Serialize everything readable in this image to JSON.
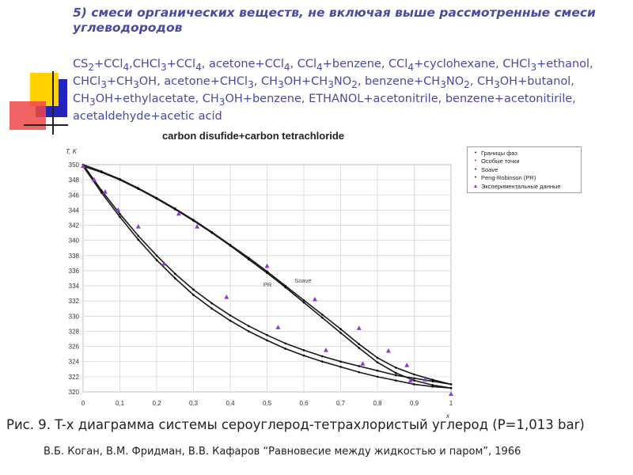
{
  "heading": "5) смеси органических веществ, не включая выше рассмотренные смеси углеводородов",
  "mixtures_html": "CS<sub>2</sub>+CCl<sub>4</sub>,CHCl<sub>3</sub>+CCl<sub>4</sub>, acetone+CCl<sub>4</sub>, CCl<sub>4</sub>+benzene, CCl<sub>4</sub>+cyclohexane, CHCl<sub>3</sub>+ethanol, CHCl<sub>3</sub>+CH<sub>3</sub>OH, acetone+CHCl<sub>3</sub>, CH<sub>3</sub>OH+CH<sub>3</sub>NO<sub>2</sub>, benzene+CH<sub>3</sub>NO<sub>2</sub>, CH<sub>3</sub>OH+butanol, CH<sub>3</sub>OH+ethylacetate, CH<sub>3</sub>OH+benzene, ETHANOL+acetonitrile, benzene+acetonitirile, acetaldehyde+acetic acid",
  "chart_data": {
    "type": "line",
    "title": "carbon disufide+carbon tetrachloride",
    "ylabel": "T, K",
    "xlabel": "x",
    "xlim": [
      0,
      1
    ],
    "ylim": [
      320,
      350
    ],
    "xticks": [
      "0",
      "0,1",
      "0,2",
      "0,3",
      "0,4",
      "0,5",
      "0,6",
      "0,7",
      "0,8",
      "0,9",
      "1"
    ],
    "yticks": [
      "320",
      "322",
      "324",
      "326",
      "328",
      "330",
      "332",
      "334",
      "336",
      "338",
      "340",
      "342",
      "344",
      "346",
      "348",
      "350"
    ],
    "grid": true,
    "legend_position": "right",
    "legend": [
      "Границы фаз",
      "Особые точки",
      "Soave",
      "Peng-Robinson (PR)",
      "Экспериментальные данные"
    ],
    "series": [
      {
        "name": "Soave",
        "role": "dew",
        "x": [
          0,
          0.05,
          0.1,
          0.15,
          0.2,
          0.25,
          0.3,
          0.35,
          0.4,
          0.45,
          0.5,
          0.55,
          0.6,
          0.65,
          0.7,
          0.75,
          0.8,
          0.85,
          0.9,
          0.95,
          1
        ],
        "y": [
          349.8,
          349.0,
          348.0,
          346.8,
          345.5,
          344.1,
          342.6,
          341.0,
          339.3,
          337.5,
          335.7,
          333.8,
          331.8,
          329.8,
          327.8,
          325.8,
          323.9,
          322.5,
          321.5,
          320.9,
          320.5
        ]
      },
      {
        "name": "Peng-Robinson (PR)",
        "role": "dew",
        "x": [
          0,
          0.05,
          0.1,
          0.15,
          0.2,
          0.25,
          0.3,
          0.35,
          0.4,
          0.45,
          0.5,
          0.55,
          0.6,
          0.65,
          0.7,
          0.75,
          0.8,
          0.85,
          0.9,
          0.95,
          1
        ],
        "y": [
          350.0,
          349.1,
          348.1,
          346.9,
          345.6,
          344.2,
          342.7,
          341.1,
          339.4,
          337.7,
          335.9,
          334.0,
          332.1,
          330.2,
          328.3,
          326.3,
          324.5,
          323.2,
          322.3,
          321.6,
          321.0
        ]
      },
      {
        "name": "Soave",
        "role": "bubble",
        "x": [
          0,
          0.05,
          0.1,
          0.15,
          0.2,
          0.25,
          0.3,
          0.35,
          0.4,
          0.45,
          0.5,
          0.55,
          0.6,
          0.65,
          0.7,
          0.75,
          0.8,
          0.85,
          0.9,
          0.95,
          1
        ],
        "y": [
          349.8,
          346.3,
          343.1,
          340.1,
          337.4,
          335.0,
          332.8,
          331.0,
          329.4,
          328.0,
          326.8,
          325.7,
          324.8,
          324.0,
          323.3,
          322.6,
          322.0,
          321.5,
          321.0,
          320.7,
          320.5
        ]
      },
      {
        "name": "Peng-Robinson (PR)",
        "role": "bubble",
        "x": [
          0,
          0.05,
          0.1,
          0.15,
          0.2,
          0.25,
          0.3,
          0.35,
          0.4,
          0.45,
          0.5,
          0.55,
          0.6,
          0.65,
          0.7,
          0.75,
          0.8,
          0.85,
          0.9,
          0.95,
          1
        ],
        "y": [
          350.0,
          346.6,
          343.5,
          340.6,
          338.0,
          335.6,
          333.5,
          331.7,
          330.1,
          328.7,
          327.5,
          326.4,
          325.5,
          324.7,
          324.0,
          323.4,
          322.8,
          322.2,
          321.8,
          321.4,
          321.0
        ]
      },
      {
        "name": "Экспериментальные данные",
        "role": "experimental",
        "x": [
          0,
          0.03,
          0.06,
          0.095,
          0.15,
          0.22,
          0.26,
          0.31,
          0.39,
          0.5,
          0.53,
          0.63,
          0.66,
          0.75,
          0.76,
          0.83,
          0.88,
          0.89,
          0.93,
          1.0
        ],
        "y": [
          349.8,
          348.0,
          346.4,
          344.0,
          341.8,
          336.9,
          343.5,
          341.8,
          332.5,
          336.6,
          328.5,
          332.2,
          325.5,
          328.4,
          323.7,
          325.4,
          323.5,
          321.5,
          321.6,
          319.7
        ]
      }
    ],
    "curve_labels": [
      "PR",
      "Soave"
    ]
  },
  "caption": "Рис. 9. T-x диаграмма системы сероуглерод-тетрахлористый углерод (P=1,013 bar)",
  "citation": "В.Б. Коган, В.М. Фридман, В.В. Кафаров “Равновесие между жидкостью и паром”, 1966",
  "colors": {
    "heading": "#4a4a9e",
    "deco_yellow": "#ffd200",
    "deco_red": "#f04848",
    "deco_blue": "#2424b8",
    "marker": "#8c3cc8"
  }
}
